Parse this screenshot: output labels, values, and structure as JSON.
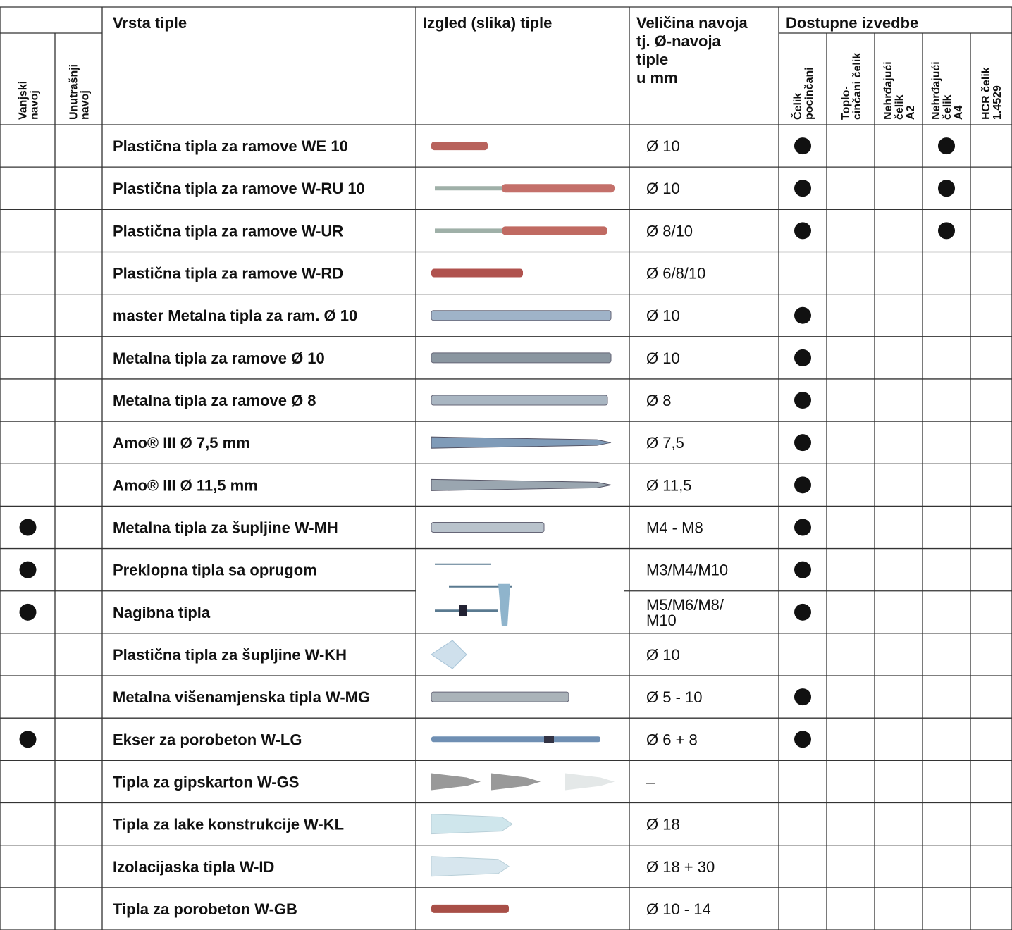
{
  "header": {
    "type_title": "Vrsta tiple",
    "image_title": "Izgled (slika) tiple",
    "size_title": [
      "Veličina navoja",
      "tj. Ø-navoja",
      "tiple",
      "u mm"
    ],
    "variants_title": "Dostupne izvedbe",
    "thread_columns": [
      [
        "Vanjski",
        "navoj"
      ],
      [
        "Unutrašnji",
        "navoj"
      ]
    ],
    "variant_columns": [
      [
        "Čelik",
        "pocinčani"
      ],
      [
        "Toplo-",
        "cinčani čelik"
      ],
      [
        "Nehrđajući",
        "čelik",
        "A2"
      ],
      [
        "Nehrđajući",
        "čelik",
        "A4"
      ],
      [
        "HCR čelik",
        "1.4529"
      ]
    ]
  },
  "table": {
    "rows": [
      {
        "outer": false,
        "inner": false,
        "name": "Plastična tipla za ramove WE 10",
        "size": [
          "Ø 10"
        ],
        "variants": [
          true,
          false,
          false,
          true,
          false
        ]
      },
      {
        "outer": false,
        "inner": false,
        "name": "Plastična tipla za ramove W-RU 10",
        "size": [
          "Ø 10"
        ],
        "variants": [
          true,
          false,
          false,
          true,
          false
        ]
      },
      {
        "outer": false,
        "inner": false,
        "name": "Plastična tipla za ramove W-UR",
        "size": [
          "Ø 8/10"
        ],
        "variants": [
          true,
          false,
          false,
          true,
          false
        ]
      },
      {
        "outer": false,
        "inner": false,
        "name": "Plastična tipla za ramove W-RD",
        "size": [
          "Ø 6/8/10"
        ],
        "variants": [
          false,
          false,
          false,
          false,
          false
        ]
      },
      {
        "outer": false,
        "inner": false,
        "name": "master Metalna tipla za ram. Ø 10",
        "size": [
          "Ø 10"
        ],
        "variants": [
          true,
          false,
          false,
          false,
          false
        ]
      },
      {
        "outer": false,
        "inner": false,
        "name": "Metalna tipla za ramove Ø 10",
        "size": [
          "Ø 10"
        ],
        "variants": [
          true,
          false,
          false,
          false,
          false
        ]
      },
      {
        "outer": false,
        "inner": false,
        "name": "Metalna tipla za ramove Ø 8",
        "size": [
          "Ø 8"
        ],
        "variants": [
          true,
          false,
          false,
          false,
          false
        ]
      },
      {
        "outer": false,
        "inner": false,
        "name": "Amo® III Ø 7,5 mm",
        "size": [
          "Ø 7,5"
        ],
        "variants": [
          true,
          false,
          false,
          false,
          false
        ]
      },
      {
        "outer": false,
        "inner": false,
        "name": "Amo® III Ø 11,5 mm",
        "size": [
          "Ø 11,5"
        ],
        "variants": [
          true,
          false,
          false,
          false,
          false
        ]
      },
      {
        "outer": true,
        "inner": false,
        "name": "Metalna tipla za šupljine W-MH",
        "size": [
          "M4 - M8"
        ],
        "variants": [
          true,
          false,
          false,
          false,
          false
        ]
      },
      {
        "outer": true,
        "inner": false,
        "name": "Preklopna tipla sa oprugom",
        "size": [
          "M3/M4/M10"
        ],
        "variants": [
          true,
          false,
          false,
          false,
          false
        ]
      },
      {
        "outer": true,
        "inner": false,
        "name": "Nagibna tipla",
        "size": [
          "M5/M6/M8/",
          "M10"
        ],
        "variants": [
          true,
          false,
          false,
          false,
          false
        ]
      },
      {
        "outer": false,
        "inner": false,
        "name": "Plastična tipla za šupljine W-KH",
        "size": [
          "Ø 10"
        ],
        "variants": [
          false,
          false,
          false,
          false,
          false
        ]
      },
      {
        "outer": false,
        "inner": false,
        "name": "Metalna višenamjenska tipla W-MG",
        "size": [
          "Ø 5 - 10"
        ],
        "variants": [
          true,
          false,
          false,
          false,
          false
        ]
      },
      {
        "outer": true,
        "inner": false,
        "name": "Ekser za porobeton W-LG",
        "size": [
          "Ø 6 + 8"
        ],
        "variants": [
          true,
          false,
          false,
          false,
          false
        ]
      },
      {
        "outer": false,
        "inner": false,
        "name": "Tipla za gipskarton W-GS",
        "size": [
          "–"
        ],
        "variants": [
          false,
          false,
          false,
          false,
          false
        ]
      },
      {
        "outer": false,
        "inner": false,
        "name": "Tipla za lake konstrukcije W-KL",
        "size": [
          "Ø 18"
        ],
        "variants": [
          false,
          false,
          false,
          false,
          false
        ]
      },
      {
        "outer": false,
        "inner": false,
        "name": "Izolacijaska tipla W-ID",
        "size": [
          "Ø 18 + 30"
        ],
        "variants": [
          false,
          false,
          false,
          false,
          false
        ]
      },
      {
        "outer": false,
        "inner": false,
        "name": "Tipla za porobeton W-GB",
        "size": [
          "Ø 10 - 14"
        ],
        "variants": [
          false,
          false,
          false,
          false,
          false
        ]
      }
    ]
  }
}
